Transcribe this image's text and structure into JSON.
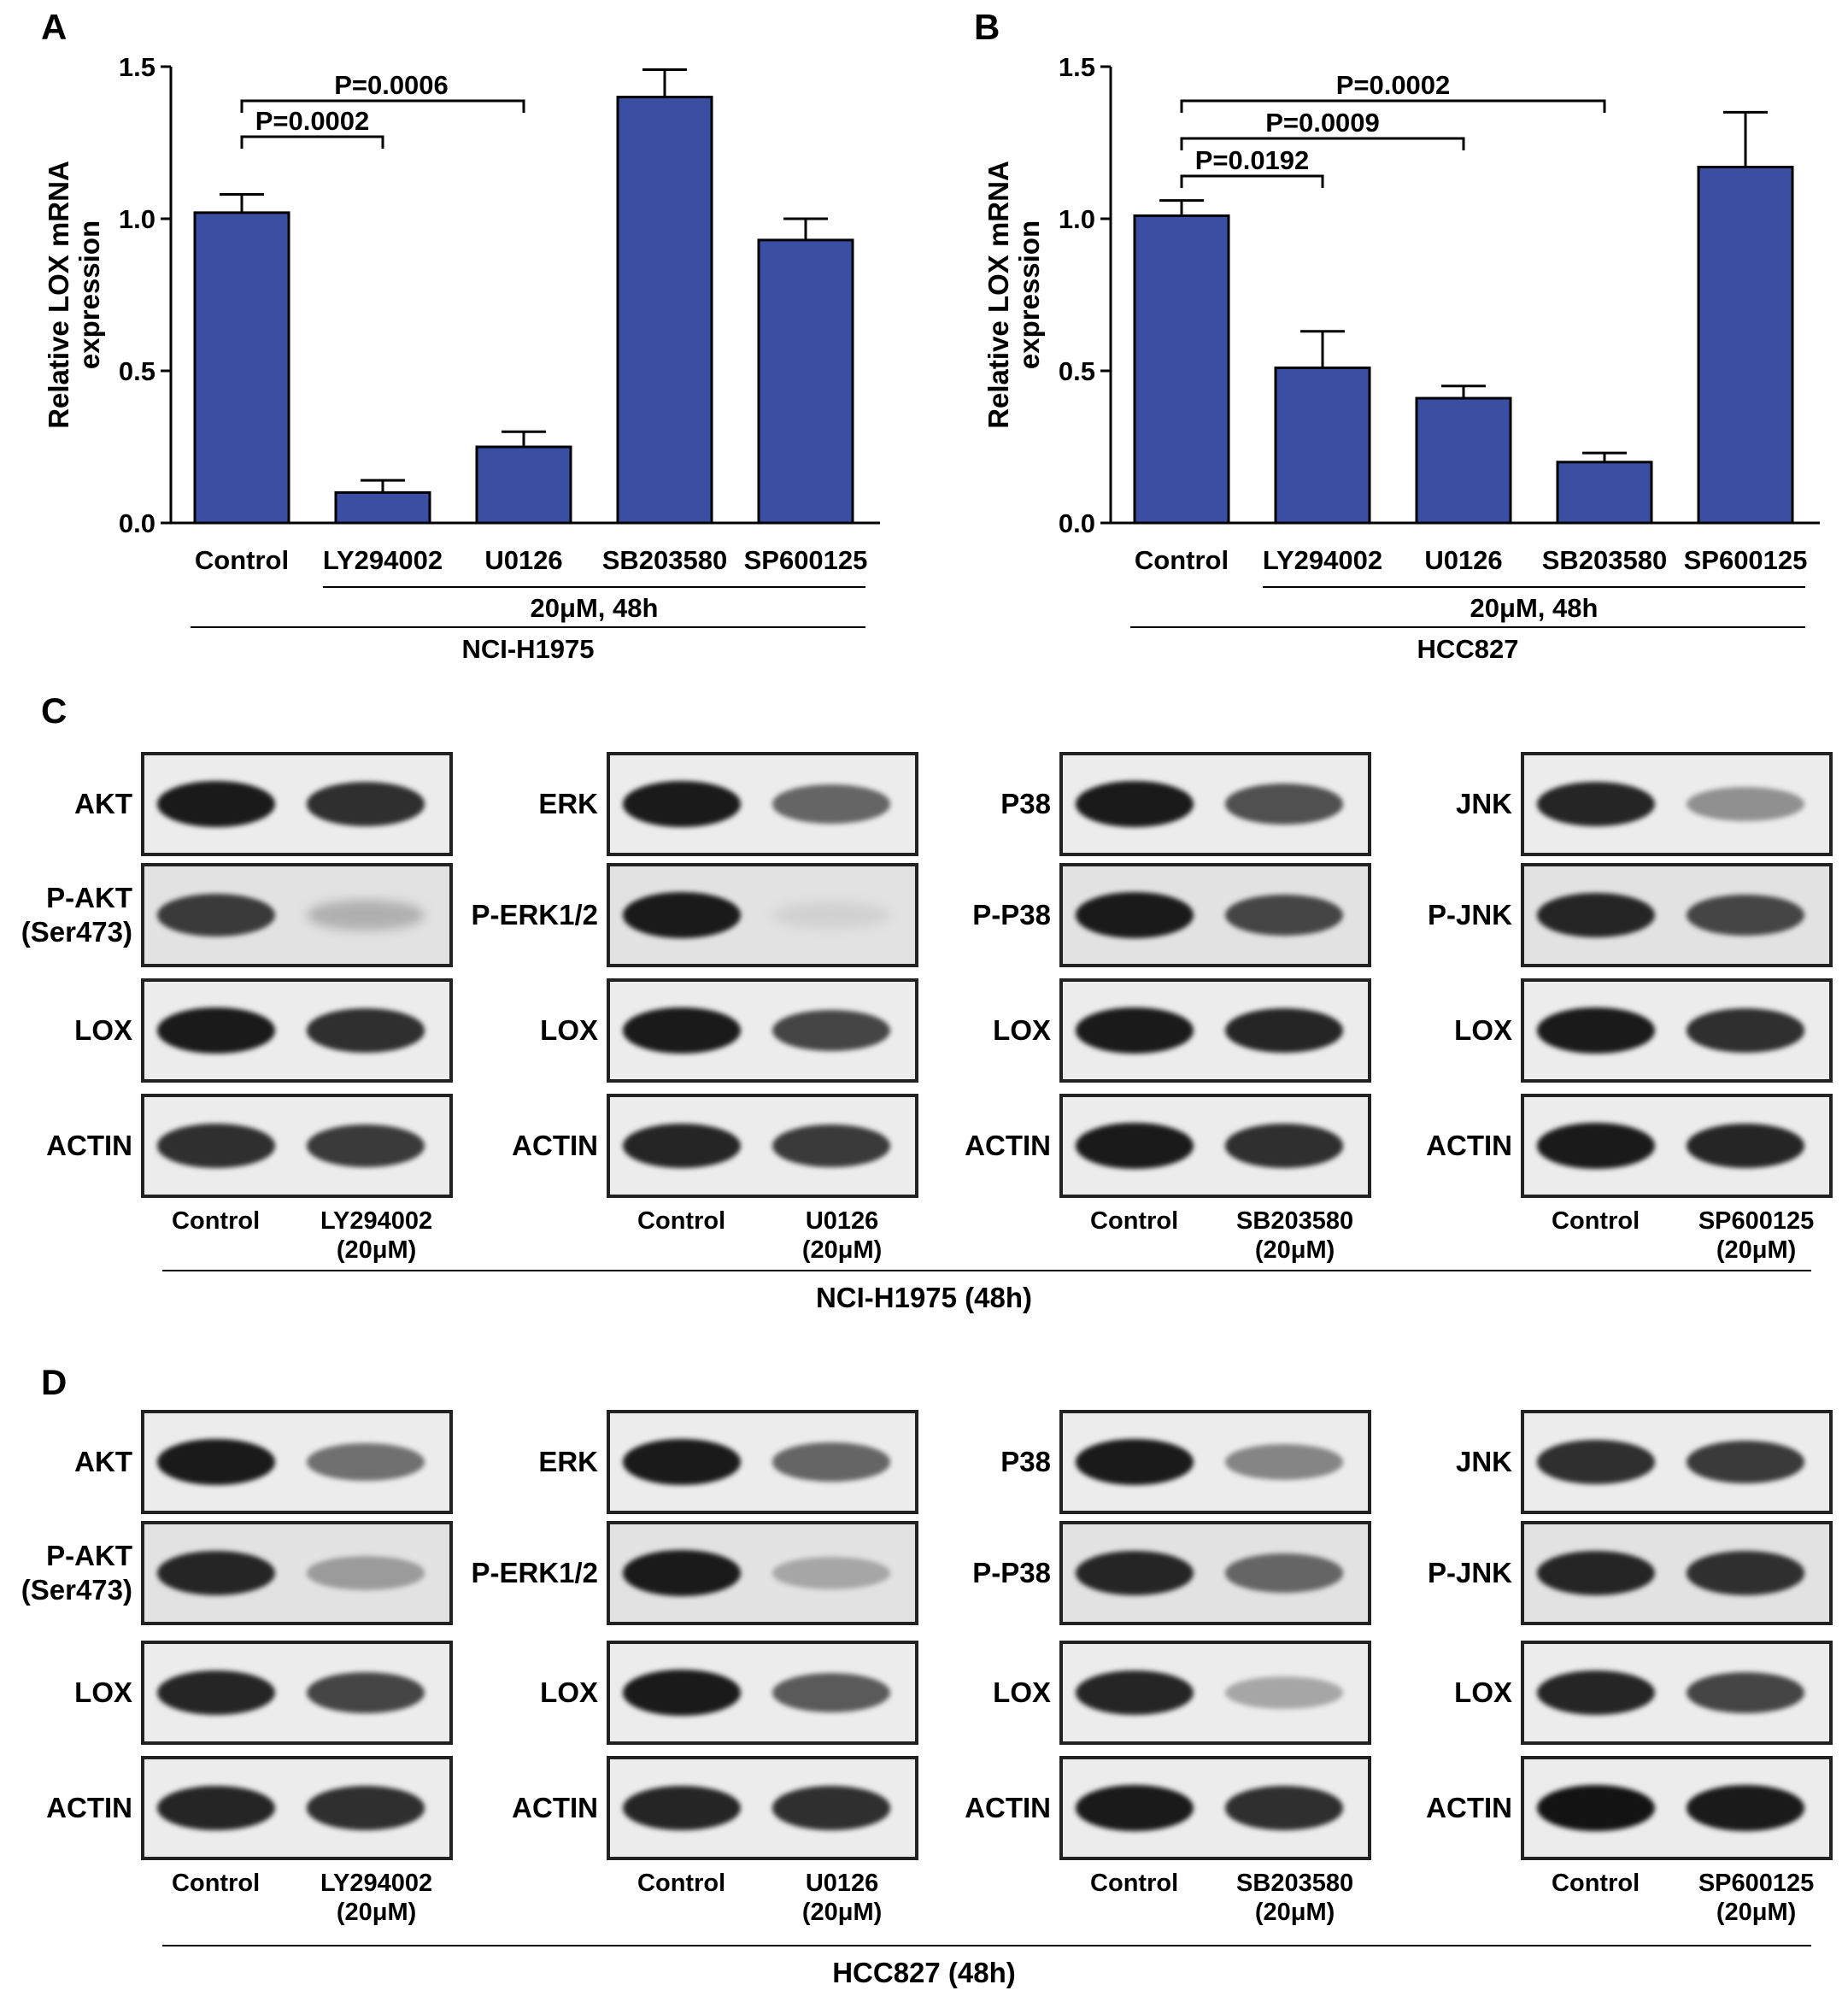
{
  "panels": {
    "A": "A",
    "B": "B",
    "C": "C",
    "D": "D"
  },
  "chart_data": [
    {
      "panel": "A",
      "type": "bar",
      "categories": [
        "Control",
        "LY294002",
        "U0126",
        "SB203580",
        "SP600125"
      ],
      "values": [
        1.02,
        0.1,
        0.25,
        1.4,
        0.93
      ],
      "errors": [
        0.06,
        0.04,
        0.05,
        0.09,
        0.07
      ],
      "ylabel": "Relative LOX mRNA\nexpression",
      "ylim": [
        0,
        1.5
      ],
      "yticks": [
        "0.0",
        "0.5",
        "1.0",
        "1.5"
      ],
      "bar_color": "#3a4fa4",
      "treatment_label": "20μM, 48h",
      "cell_line": "NCI-H1975",
      "comparisons": [
        {
          "from": 0,
          "to": 1,
          "label": "P=0.0002"
        },
        {
          "from": 0,
          "to": 2,
          "label": "P=0.0006"
        }
      ]
    },
    {
      "panel": "B",
      "type": "bar",
      "categories": [
        "Control",
        "LY294002",
        "U0126",
        "SB203580",
        "SP600125"
      ],
      "values": [
        1.01,
        0.51,
        0.41,
        0.2,
        1.17
      ],
      "errors": [
        0.05,
        0.12,
        0.04,
        0.03,
        0.18
      ],
      "ylabel": "Relative LOX mRNA\nexpression",
      "ylim": [
        0,
        1.5
      ],
      "yticks": [
        "0.0",
        "0.5",
        "1.0",
        "1.5"
      ],
      "bar_color": "#3a4fa4",
      "treatment_label": "20μM, 48h",
      "cell_line": "HCC827",
      "comparisons": [
        {
          "from": 0,
          "to": 1,
          "label": "P=0.0192"
        },
        {
          "from": 0,
          "to": 2,
          "label": "P=0.0009"
        },
        {
          "from": 0,
          "to": 3,
          "label": "P=0.0002"
        }
      ]
    }
  ],
  "blot_C": {
    "caption": "NCI-H1975 (48h)",
    "groups": [
      {
        "rows": [
          "AKT",
          "P-AKT\n(Ser473)",
          "LOX",
          "ACTIN"
        ],
        "control": "Control",
        "treat": "LY294002\n(20μM)",
        "intensity": [
          [
            0.95,
            0.85
          ],
          [
            0.8,
            0.25
          ],
          [
            0.95,
            0.85
          ],
          [
            0.85,
            0.8
          ]
        ]
      },
      {
        "rows": [
          "ERK",
          "P-ERK1/2",
          "LOX",
          "ACTIN"
        ],
        "control": "Control",
        "treat": "U0126\n(20μM)",
        "intensity": [
          [
            0.95,
            0.6
          ],
          [
            0.95,
            0.1
          ],
          [
            0.95,
            0.75
          ],
          [
            0.9,
            0.8
          ]
        ]
      },
      {
        "rows": [
          "P38",
          "P-P38",
          "LOX",
          "ACTIN"
        ],
        "control": "Control",
        "treat": "SB203580\n(20μM)",
        "intensity": [
          [
            0.95,
            0.7
          ],
          [
            0.95,
            0.75
          ],
          [
            0.95,
            0.9
          ],
          [
            0.95,
            0.85
          ]
        ]
      },
      {
        "rows": [
          "JNK",
          "P-JNK",
          "LOX",
          "ACTIN"
        ],
        "control": "Control",
        "treat": "SP600125\n(20μM)",
        "intensity": [
          [
            0.9,
            0.4
          ],
          [
            0.9,
            0.75
          ],
          [
            0.95,
            0.85
          ],
          [
            0.95,
            0.9
          ]
        ]
      }
    ]
  },
  "blot_D": {
    "caption": "HCC827 (48h)",
    "groups": [
      {
        "rows": [
          "AKT",
          "P-AKT\n(Ser473)",
          "LOX",
          "ACTIN"
        ],
        "control": "Control",
        "treat": "LY294002\n(20μM)",
        "intensity": [
          [
            0.95,
            0.55
          ],
          [
            0.9,
            0.35
          ],
          [
            0.9,
            0.75
          ],
          [
            0.9,
            0.85
          ]
        ]
      },
      {
        "rows": [
          "ERK",
          "P-ERK1/2",
          "LOX",
          "ACTIN"
        ],
        "control": "Control",
        "treat": "U0126\n(20μM)",
        "intensity": [
          [
            0.95,
            0.6
          ],
          [
            0.95,
            0.3
          ],
          [
            0.95,
            0.65
          ],
          [
            0.9,
            0.85
          ]
        ]
      },
      {
        "rows": [
          "P38",
          "P-P38",
          "LOX",
          "ACTIN"
        ],
        "control": "Control",
        "treat": "SB203580\n(20μM)",
        "intensity": [
          [
            0.95,
            0.45
          ],
          [
            0.9,
            0.6
          ],
          [
            0.9,
            0.3
          ],
          [
            0.95,
            0.85
          ]
        ]
      },
      {
        "rows": [
          "JNK",
          "P-JNK",
          "LOX",
          "ACTIN"
        ],
        "control": "Control",
        "treat": "SP600125\n(20μM)",
        "intensity": [
          [
            0.85,
            0.8
          ],
          [
            0.9,
            0.85
          ],
          [
            0.9,
            0.75
          ],
          [
            0.98,
            0.95
          ]
        ]
      }
    ]
  }
}
